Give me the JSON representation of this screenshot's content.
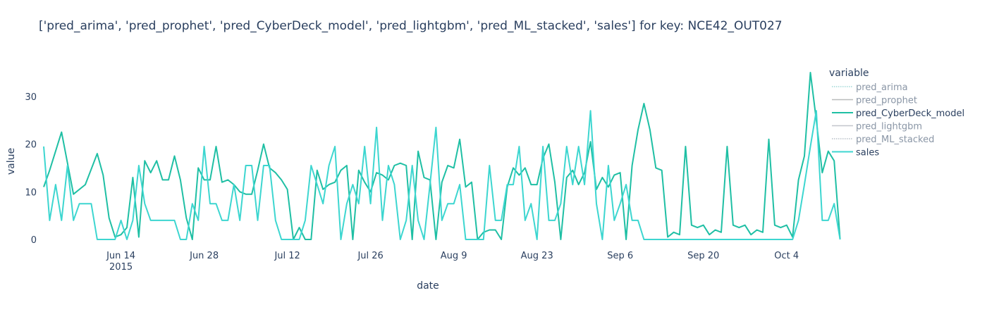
{
  "chart_data": {
    "type": "line",
    "title": "['pred_arima', 'pred_prophet', 'pred_CyberDeck_model', 'pred_lightgbm', 'pred_ML_stacked', 'sales'] for key: NCE42_OUT027",
    "xlabel": "date",
    "ylabel": "value",
    "legend_title": "variable",
    "legend_position": "right",
    "grid": false,
    "ylim": [
      0,
      35
    ],
    "y_ticks": [
      0,
      10,
      20,
      30
    ],
    "x_range": [
      "2015-06-01",
      "2015-10-08"
    ],
    "x_ticks": [
      {
        "date": "2015-06-14",
        "label": "Jun 14",
        "sublabel": "2015"
      },
      {
        "date": "2015-06-28",
        "label": "Jun 28",
        "sublabel": ""
      },
      {
        "date": "2015-07-12",
        "label": "Jul 12",
        "sublabel": ""
      },
      {
        "date": "2015-07-26",
        "label": "Jul 26",
        "sublabel": ""
      },
      {
        "date": "2015-08-09",
        "label": "Aug 9",
        "sublabel": ""
      },
      {
        "date": "2015-08-23",
        "label": "Aug 23",
        "sublabel": ""
      },
      {
        "date": "2015-09-06",
        "label": "Sep 6",
        "sublabel": ""
      },
      {
        "date": "2015-09-20",
        "label": "Sep 20",
        "sublabel": ""
      },
      {
        "date": "2015-10-04",
        "label": "Oct 4",
        "sublabel": ""
      }
    ],
    "series": [
      {
        "name": "pred_arima",
        "color": "#9fd8d6",
        "dash": "dot",
        "legend_only": true,
        "points": []
      },
      {
        "name": "pred_prophet",
        "color": "#b9bcbc",
        "dash": "solid",
        "legend_only": true,
        "points": []
      },
      {
        "name": "pred_CyberDeck_model",
        "color": "#1fbfa4",
        "dash": "solid",
        "legend_only": false,
        "points": [
          [
            "2015-06-01",
            11
          ],
          [
            "2015-06-02",
            14.5
          ],
          [
            "2015-06-04",
            22.5
          ],
          [
            "2015-06-06",
            9.5
          ],
          [
            "2015-06-08",
            11.5
          ],
          [
            "2015-06-10",
            18
          ],
          [
            "2015-06-11",
            13.5
          ],
          [
            "2015-06-12",
            4.5
          ],
          [
            "2015-06-13",
            0.5
          ],
          [
            "2015-06-14",
            1
          ],
          [
            "2015-06-15",
            2.5
          ],
          [
            "2015-06-16",
            13
          ],
          [
            "2015-06-17",
            0.5
          ],
          [
            "2015-06-18",
            16.5
          ],
          [
            "2015-06-19",
            14
          ],
          [
            "2015-06-20",
            16.5
          ],
          [
            "2015-06-21",
            12.5
          ],
          [
            "2015-06-22",
            12.5
          ],
          [
            "2015-06-23",
            17.5
          ],
          [
            "2015-06-24",
            12.5
          ],
          [
            "2015-06-25",
            4.5
          ],
          [
            "2015-06-26",
            0
          ],
          [
            "2015-06-27",
            15
          ],
          [
            "2015-06-28",
            12.5
          ],
          [
            "2015-06-29",
            12.5
          ],
          [
            "2015-06-30",
            19.5
          ],
          [
            "2015-07-01",
            12
          ],
          [
            "2015-07-02",
            12.5
          ],
          [
            "2015-07-03",
            11.5
          ],
          [
            "2015-07-04",
            10
          ],
          [
            "2015-07-05",
            9.5
          ],
          [
            "2015-07-06",
            9.5
          ],
          [
            "2015-07-07",
            14.5
          ],
          [
            "2015-07-08",
            20
          ],
          [
            "2015-07-09",
            15
          ],
          [
            "2015-07-10",
            14
          ],
          [
            "2015-07-11",
            12.5
          ],
          [
            "2015-07-12",
            10.5
          ],
          [
            "2015-07-13",
            0
          ],
          [
            "2015-07-14",
            2.5
          ],
          [
            "2015-07-15",
            0
          ],
          [
            "2015-07-16",
            0
          ],
          [
            "2015-07-17",
            14.5
          ],
          [
            "2015-07-18",
            10.5
          ],
          [
            "2015-07-19",
            11.5
          ],
          [
            "2015-07-20",
            12
          ],
          [
            "2015-07-21",
            14.5
          ],
          [
            "2015-07-22",
            15.5
          ],
          [
            "2015-07-23",
            0
          ],
          [
            "2015-07-24",
            14.5
          ],
          [
            "2015-07-25",
            12
          ],
          [
            "2015-07-26",
            10
          ],
          [
            "2015-07-27",
            14
          ],
          [
            "2015-07-28",
            13.5
          ],
          [
            "2015-07-29",
            12.5
          ],
          [
            "2015-07-30",
            15.5
          ],
          [
            "2015-07-31",
            16
          ],
          [
            "2015-08-01",
            15.5
          ],
          [
            "2015-08-02",
            0
          ],
          [
            "2015-08-03",
            18.5
          ],
          [
            "2015-08-04",
            13
          ],
          [
            "2015-08-05",
            12.5
          ],
          [
            "2015-08-06",
            0
          ],
          [
            "2015-08-07",
            12
          ],
          [
            "2015-08-08",
            15.5
          ],
          [
            "2015-08-09",
            15
          ],
          [
            "2015-08-10",
            21
          ],
          [
            "2015-08-11",
            11
          ],
          [
            "2015-08-12",
            12
          ],
          [
            "2015-08-13",
            0
          ],
          [
            "2015-08-14",
            1.5
          ],
          [
            "2015-08-15",
            2
          ],
          [
            "2015-08-16",
            2
          ],
          [
            "2015-08-17",
            0
          ],
          [
            "2015-08-18",
            11
          ],
          [
            "2015-08-19",
            15
          ],
          [
            "2015-08-20",
            13.5
          ],
          [
            "2015-08-21",
            15
          ],
          [
            "2015-08-22",
            11.5
          ],
          [
            "2015-08-23",
            11.5
          ],
          [
            "2015-08-24",
            17
          ],
          [
            "2015-08-25",
            20
          ],
          [
            "2015-08-26",
            12
          ],
          [
            "2015-08-27",
            0
          ],
          [
            "2015-08-28",
            13
          ],
          [
            "2015-08-29",
            14.5
          ],
          [
            "2015-08-30",
            11.5
          ],
          [
            "2015-08-31",
            14
          ],
          [
            "2015-09-01",
            20.5
          ],
          [
            "2015-09-02",
            10.5
          ],
          [
            "2015-09-03",
            13
          ],
          [
            "2015-09-04",
            11
          ],
          [
            "2015-09-05",
            13.5
          ],
          [
            "2015-09-06",
            14
          ],
          [
            "2015-09-07",
            0
          ],
          [
            "2015-09-08",
            15.5
          ],
          [
            "2015-09-09",
            23
          ],
          [
            "2015-09-10",
            28.5
          ],
          [
            "2015-09-11",
            23
          ],
          [
            "2015-09-12",
            15
          ],
          [
            "2015-09-13",
            14.5
          ],
          [
            "2015-09-14",
            0.5
          ],
          [
            "2015-09-15",
            1.5
          ],
          [
            "2015-09-16",
            1
          ],
          [
            "2015-09-17",
            19.5
          ],
          [
            "2015-09-18",
            3
          ],
          [
            "2015-09-19",
            2.5
          ],
          [
            "2015-09-20",
            3
          ],
          [
            "2015-09-21",
            1
          ],
          [
            "2015-09-22",
            2
          ],
          [
            "2015-09-23",
            1.5
          ],
          [
            "2015-09-24",
            19.5
          ],
          [
            "2015-09-25",
            3
          ],
          [
            "2015-09-26",
            2.5
          ],
          [
            "2015-09-27",
            3
          ],
          [
            "2015-09-28",
            1
          ],
          [
            "2015-09-29",
            2
          ],
          [
            "2015-09-30",
            1.5
          ],
          [
            "2015-10-01",
            21
          ],
          [
            "2015-10-02",
            3
          ],
          [
            "2015-10-03",
            2.5
          ],
          [
            "2015-10-04",
            3
          ],
          [
            "2015-10-05",
            0.5
          ],
          [
            "2015-10-06",
            12.5
          ],
          [
            "2015-10-07",
            17.5
          ],
          [
            "2015-10-08",
            35
          ],
          [
            "2015-10-09",
            25
          ],
          [
            "2015-10-10",
            14
          ],
          [
            "2015-10-11",
            18.5
          ],
          [
            "2015-10-12",
            16.5
          ],
          [
            "2015-10-13",
            0
          ]
        ]
      },
      {
        "name": "pred_lightgbm",
        "color": "#c2c6cc",
        "dash": "solid",
        "legend_only": true,
        "points": []
      },
      {
        "name": "pred_ML_stacked",
        "color": "#b8c0c8",
        "dash": "dot",
        "legend_only": true,
        "points": []
      },
      {
        "name": "sales",
        "color": "#3dd6d0",
        "dash": "solid",
        "legend_only": false,
        "points": [
          [
            "2015-06-01",
            19.5
          ],
          [
            "2015-06-02",
            4
          ],
          [
            "2015-06-03",
            11.5
          ],
          [
            "2015-06-04",
            4
          ],
          [
            "2015-06-05",
            15.5
          ],
          [
            "2015-06-06",
            4
          ],
          [
            "2015-06-07",
            7.5
          ],
          [
            "2015-06-08",
            7.5
          ],
          [
            "2015-06-09",
            7.5
          ],
          [
            "2015-06-10",
            0
          ],
          [
            "2015-06-11",
            0
          ],
          [
            "2015-06-12",
            0
          ],
          [
            "2015-06-13",
            0
          ],
          [
            "2015-06-14",
            4
          ],
          [
            "2015-06-15",
            0
          ],
          [
            "2015-06-16",
            4
          ],
          [
            "2015-06-17",
            15.5
          ],
          [
            "2015-06-18",
            7.5
          ],
          [
            "2015-06-19",
            4
          ],
          [
            "2015-06-20",
            4
          ],
          [
            "2015-06-21",
            4
          ],
          [
            "2015-06-22",
            4
          ],
          [
            "2015-06-23",
            4
          ],
          [
            "2015-06-24",
            0
          ],
          [
            "2015-06-25",
            0
          ],
          [
            "2015-06-26",
            7.5
          ],
          [
            "2015-06-27",
            4
          ],
          [
            "2015-06-28",
            19.5
          ],
          [
            "2015-06-29",
            7.5
          ],
          [
            "2015-06-30",
            7.5
          ],
          [
            "2015-07-01",
            4
          ],
          [
            "2015-07-02",
            4
          ],
          [
            "2015-07-03",
            11.5
          ],
          [
            "2015-07-04",
            4
          ],
          [
            "2015-07-05",
            15.5
          ],
          [
            "2015-07-06",
            15.5
          ],
          [
            "2015-07-07",
            4
          ],
          [
            "2015-07-08",
            15.5
          ],
          [
            "2015-07-09",
            15.5
          ],
          [
            "2015-07-10",
            4
          ],
          [
            "2015-07-11",
            0
          ],
          [
            "2015-07-12",
            0
          ],
          [
            "2015-07-13",
            0
          ],
          [
            "2015-07-14",
            0
          ],
          [
            "2015-07-15",
            4
          ],
          [
            "2015-07-16",
            15.5
          ],
          [
            "2015-07-17",
            11.5
          ],
          [
            "2015-07-18",
            7.5
          ],
          [
            "2015-07-19",
            15.5
          ],
          [
            "2015-07-20",
            19.5
          ],
          [
            "2015-07-21",
            0
          ],
          [
            "2015-07-22",
            7.5
          ],
          [
            "2015-07-23",
            11.5
          ],
          [
            "2015-07-24",
            7.5
          ],
          [
            "2015-07-25",
            19.5
          ],
          [
            "2015-07-26",
            7.5
          ],
          [
            "2015-07-27",
            23.5
          ],
          [
            "2015-07-28",
            4
          ],
          [
            "2015-07-29",
            15.5
          ],
          [
            "2015-07-30",
            11.5
          ],
          [
            "2015-07-31",
            0
          ],
          [
            "2015-08-01",
            4
          ],
          [
            "2015-08-02",
            15.5
          ],
          [
            "2015-08-03",
            4
          ],
          [
            "2015-08-04",
            0
          ],
          [
            "2015-08-05",
            11.5
          ],
          [
            "2015-08-06",
            23.5
          ],
          [
            "2015-08-07",
            4
          ],
          [
            "2015-08-08",
            7.5
          ],
          [
            "2015-08-09",
            7.5
          ],
          [
            "2015-08-10",
            11.5
          ],
          [
            "2015-08-11",
            0
          ],
          [
            "2015-08-12",
            0
          ],
          [
            "2015-08-13",
            0
          ],
          [
            "2015-08-14",
            0
          ],
          [
            "2015-08-15",
            15.5
          ],
          [
            "2015-08-16",
            4
          ],
          [
            "2015-08-17",
            4
          ],
          [
            "2015-08-18",
            11.5
          ],
          [
            "2015-08-19",
            11.5
          ],
          [
            "2015-08-20",
            19.5
          ],
          [
            "2015-08-21",
            4
          ],
          [
            "2015-08-22",
            7.5
          ],
          [
            "2015-08-23",
            0
          ],
          [
            "2015-08-24",
            19.5
          ],
          [
            "2015-08-25",
            4
          ],
          [
            "2015-08-26",
            4
          ],
          [
            "2015-08-27",
            7.5
          ],
          [
            "2015-08-28",
            19.5
          ],
          [
            "2015-08-29",
            11.5
          ],
          [
            "2015-08-30",
            19.5
          ],
          [
            "2015-08-31",
            11.5
          ],
          [
            "2015-09-01",
            27
          ],
          [
            "2015-09-02",
            7.5
          ],
          [
            "2015-09-03",
            0
          ],
          [
            "2015-09-04",
            15.5
          ],
          [
            "2015-09-05",
            4
          ],
          [
            "2015-09-06",
            7.5
          ],
          [
            "2015-09-07",
            11.5
          ],
          [
            "2015-09-08",
            4
          ],
          [
            "2015-09-09",
            4
          ],
          [
            "2015-09-10",
            0
          ],
          [
            "2015-09-11",
            0
          ],
          [
            "2015-09-12",
            0
          ],
          [
            "2015-09-13",
            0
          ],
          [
            "2015-09-14",
            0
          ],
          [
            "2015-09-15",
            0
          ],
          [
            "2015-09-16",
            0
          ],
          [
            "2015-09-17",
            0
          ],
          [
            "2015-09-18",
            0
          ],
          [
            "2015-09-19",
            0
          ],
          [
            "2015-09-20",
            0
          ],
          [
            "2015-09-21",
            0
          ],
          [
            "2015-09-22",
            0
          ],
          [
            "2015-09-23",
            0
          ],
          [
            "2015-09-24",
            0
          ],
          [
            "2015-09-25",
            0
          ],
          [
            "2015-09-26",
            0
          ],
          [
            "2015-09-27",
            0
          ],
          [
            "2015-09-28",
            0
          ],
          [
            "2015-09-29",
            0
          ],
          [
            "2015-09-30",
            0
          ],
          [
            "2015-10-01",
            0
          ],
          [
            "2015-10-02",
            0
          ],
          [
            "2015-10-03",
            0
          ],
          [
            "2015-10-04",
            0
          ],
          [
            "2015-10-05",
            0
          ],
          [
            "2015-10-06",
            4
          ],
          [
            "2015-10-07",
            11.5
          ],
          [
            "2015-10-08",
            19.5
          ],
          [
            "2015-10-09",
            27
          ],
          [
            "2015-10-10",
            4
          ],
          [
            "2015-10-11",
            4
          ],
          [
            "2015-10-12",
            7.5
          ],
          [
            "2015-10-13",
            0
          ]
        ]
      }
    ]
  }
}
